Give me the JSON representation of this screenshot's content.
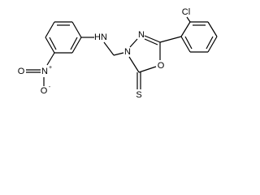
{
  "atoms": {
    "chlorine": "Cl",
    "amine": "HN",
    "ring_n3": "N",
    "ring_n4": "N",
    "ring_o": "O",
    "thione_s": "S",
    "nitro_n": "N",
    "nitro_n_charge": "+",
    "nitro_o1": "O",
    "nitro_o2": "O",
    "nitro_o2_charge": "-"
  }
}
